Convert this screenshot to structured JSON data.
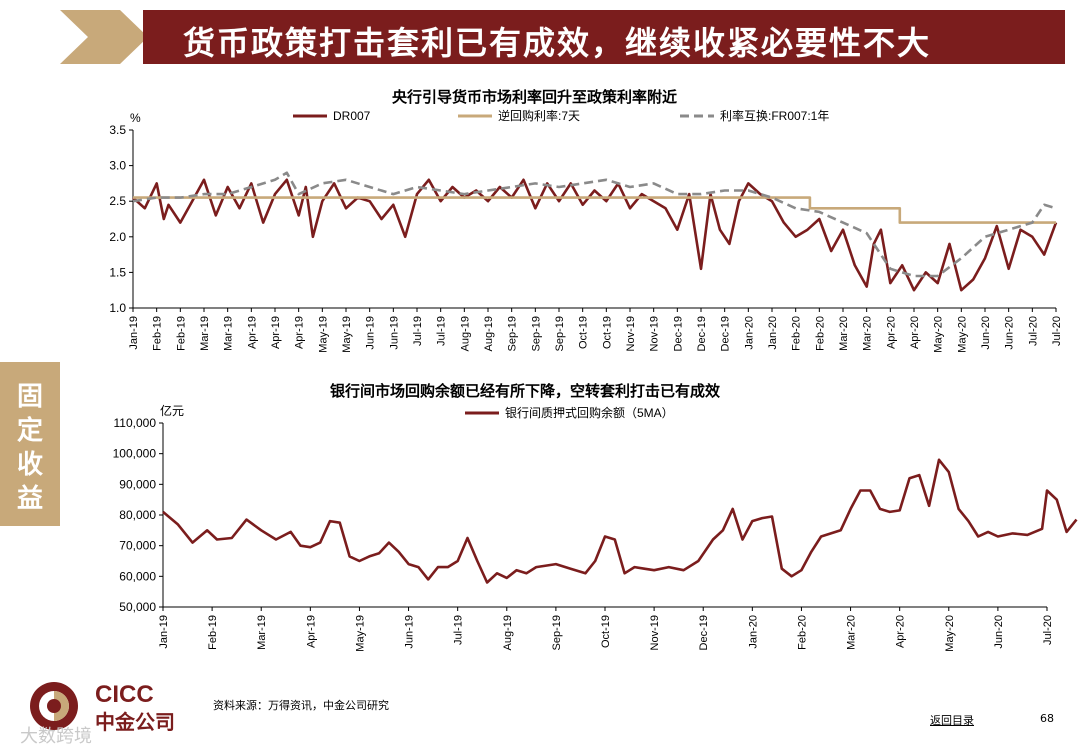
{
  "header": {
    "title": "货币政策打击套利已有成效，继续收紧必要性不大"
  },
  "sidebar": {
    "tab_label": "固定收益"
  },
  "chart_data": [
    {
      "type": "line",
      "title": "央行引导货币市场利率回升至政策利率附近",
      "ylabel": "%",
      "ylim": [
        1.0,
        3.5
      ],
      "yticks": [
        "1.0",
        "1.5",
        "2.0",
        "2.5",
        "3.0",
        "3.5"
      ],
      "grid": false,
      "legend_position": "top",
      "x_tick_labels": [
        "Jan-19",
        "Feb-19",
        "Feb-19",
        "Mar-19",
        "Mar-19",
        "Apr-19",
        "Apr-19",
        "Apr-19",
        "May-19",
        "May-19",
        "Jun-19",
        "Jun-19",
        "Jul-19",
        "Jul-19",
        "Aug-19",
        "Aug-19",
        "Sep-19",
        "Sep-19",
        "Sep-19",
        "Oct-19",
        "Oct-19",
        "Nov-19",
        "Nov-19",
        "Dec-19",
        "Dec-19",
        "Dec-19",
        "Jan-20",
        "Jan-20",
        "Feb-20",
        "Feb-20",
        "Mar-20",
        "Mar-20",
        "Apr-20",
        "Apr-20",
        "May-20",
        "May-20",
        "Jun-20",
        "Jun-20",
        "Jul-20",
        "Jul-20"
      ],
      "series": [
        {
          "name": "DR007",
          "color": "#7b1d1d",
          "style": "solid",
          "x": [
            0,
            0.5,
            1,
            1.3,
            1.5,
            2,
            2.5,
            3,
            3.5,
            4,
            4.5,
            5,
            5.5,
            6,
            6.5,
            7,
            7.3,
            7.6,
            8,
            8.5,
            9,
            9.5,
            10,
            10.5,
            11,
            11.5,
            12,
            12.5,
            13,
            13.5,
            14,
            14.5,
            15,
            15.5,
            16,
            16.5,
            17,
            17.5,
            18,
            18.5,
            19,
            19.5,
            20,
            20.5,
            21,
            21.5,
            22,
            22.5,
            23,
            23.5,
            24,
            24.4,
            24.8,
            25.2,
            25.6,
            26,
            26.5,
            27,
            27.5,
            28,
            28.5,
            29,
            29.5,
            30,
            30.5,
            31,
            31.3,
            31.6,
            32,
            32.5,
            33,
            33.5,
            34,
            34.5,
            35,
            35.5,
            36,
            36.5,
            37,
            37.5,
            38,
            38.5,
            39
          ],
          "y": [
            2.55,
            2.4,
            2.75,
            2.25,
            2.45,
            2.2,
            2.5,
            2.8,
            2.3,
            2.7,
            2.4,
            2.75,
            2.2,
            2.6,
            2.8,
            2.3,
            2.7,
            2.0,
            2.5,
            2.75,
            2.4,
            2.55,
            2.5,
            2.25,
            2.45,
            2.0,
            2.6,
            2.8,
            2.5,
            2.7,
            2.55,
            2.65,
            2.5,
            2.7,
            2.55,
            2.8,
            2.4,
            2.75,
            2.5,
            2.75,
            2.45,
            2.65,
            2.5,
            2.75,
            2.4,
            2.6,
            2.5,
            2.4,
            2.1,
            2.6,
            1.55,
            2.6,
            2.1,
            1.9,
            2.5,
            2.75,
            2.6,
            2.5,
            2.2,
            2.0,
            2.1,
            2.25,
            1.8,
            2.1,
            1.6,
            1.3,
            1.9,
            2.1,
            1.35,
            1.6,
            1.25,
            1.5,
            1.35,
            1.9,
            1.25,
            1.4,
            1.7,
            2.15,
            1.55,
            2.1,
            2.0,
            1.75,
            2.2
          ]
        },
        {
          "name": "逆回购利率:7天",
          "color": "#c8a97a",
          "style": "solid",
          "x": [
            0,
            28.6,
            28.6,
            32.4,
            32.4,
            39
          ],
          "y": [
            2.55,
            2.55,
            2.4,
            2.4,
            2.2,
            2.2
          ]
        },
        {
          "name": "利率互换:FR007:1年",
          "color": "#8a8a8a",
          "style": "dashed",
          "x": [
            0,
            1,
            2,
            3,
            4,
            5,
            6,
            6.5,
            7,
            8,
            9,
            10,
            11,
            12,
            13,
            14,
            15,
            16,
            17,
            18,
            19,
            20,
            21,
            22,
            23,
            24,
            25,
            26,
            27,
            28,
            29,
            30,
            31,
            32,
            33,
            34,
            35,
            36,
            37,
            38,
            38.5,
            39
          ],
          "y": [
            2.5,
            2.55,
            2.55,
            2.6,
            2.6,
            2.7,
            2.8,
            2.9,
            2.6,
            2.75,
            2.8,
            2.7,
            2.6,
            2.7,
            2.65,
            2.6,
            2.65,
            2.7,
            2.75,
            2.7,
            2.75,
            2.8,
            2.7,
            2.75,
            2.6,
            2.6,
            2.65,
            2.65,
            2.55,
            2.4,
            2.35,
            2.2,
            2.05,
            1.55,
            1.45,
            1.45,
            1.7,
            2.0,
            2.1,
            2.2,
            2.45,
            2.4
          ]
        }
      ]
    },
    {
      "type": "line",
      "title": "银行间市场回购余额已经有所下降，空转套利打击已有成效",
      "ylabel": "亿元",
      "ylim": [
        50000,
        110000
      ],
      "yticks": [
        "50,000",
        "60,000",
        "70,000",
        "80,000",
        "90,000",
        "100,000",
        "110,000"
      ],
      "grid": false,
      "legend_position": "top",
      "x_tick_labels": [
        "Jan-19",
        "Feb-19",
        "Mar-19",
        "Apr-19",
        "May-19",
        "Jun-19",
        "Jul-19",
        "Aug-19",
        "Sep-19",
        "Oct-19",
        "Nov-19",
        "Dec-19",
        "Jan-20",
        "Feb-20",
        "Mar-20",
        "Apr-20",
        "May-20",
        "Jun-20",
        "Jul-20"
      ],
      "series": [
        {
          "name": "银行间质押式回购余额（5MA）",
          "color": "#7b1d1d",
          "style": "solid",
          "x": [
            0,
            0.3,
            0.6,
            0.9,
            1.1,
            1.4,
            1.7,
            2.0,
            2.3,
            2.6,
            2.8,
            3.0,
            3.2,
            3.4,
            3.6,
            3.8,
            4.0,
            4.2,
            4.4,
            4.6,
            4.8,
            5.0,
            5.2,
            5.4,
            5.6,
            5.8,
            6.0,
            6.2,
            6.4,
            6.6,
            6.8,
            7.0,
            7.2,
            7.4,
            7.6,
            7.8,
            8.0,
            8.3,
            8.6,
            8.8,
            9.0,
            9.2,
            9.4,
            9.6,
            9.8,
            10.0,
            10.3,
            10.6,
            10.9,
            11.2,
            11.4,
            11.6,
            11.8,
            12.0,
            12.2,
            12.4,
            12.6,
            12.8,
            13.0,
            13.2,
            13.4,
            13.6,
            13.8,
            14.0,
            14.2,
            14.4,
            14.6,
            14.8,
            15.0,
            15.2,
            15.4,
            15.6,
            15.8,
            16.0,
            16.2,
            16.4,
            16.6,
            16.8,
            17.0,
            17.3,
            17.6,
            17.9,
            18.0,
            18.2,
            18.4,
            18.6
          ],
          "y": [
            81000,
            77000,
            71000,
            75000,
            72000,
            72500,
            78500,
            75000,
            72000,
            74500,
            70000,
            69500,
            71000,
            78000,
            77500,
            66500,
            65000,
            66500,
            67500,
            71000,
            68000,
            64000,
            63000,
            59000,
            63000,
            63000,
            65000,
            72500,
            65000,
            58000,
            61000,
            59500,
            62000,
            61000,
            63000,
            63500,
            64000,
            62500,
            61000,
            65000,
            73000,
            72000,
            61000,
            63000,
            62500,
            62000,
            63000,
            62000,
            65000,
            72000,
            75000,
            82000,
            72000,
            78000,
            79000,
            79500,
            62500,
            60000,
            62000,
            68000,
            73000,
            74000,
            75000,
            82000,
            88000,
            88000,
            82000,
            81000,
            81500,
            92000,
            93000,
            83000,
            98000,
            94000,
            82000,
            78000,
            73000,
            74500,
            73000,
            74000,
            73500,
            75500,
            88000,
            85000,
            74500,
            78500
          ]
        }
      ]
    }
  ],
  "footer": {
    "source": "资料来源：万得资讯，中金公司研究",
    "toc_link": "返回目录",
    "page_number": "68"
  },
  "logo": {
    "en": "CICC",
    "cn": "中金公司"
  },
  "watermark": "大数跨境"
}
